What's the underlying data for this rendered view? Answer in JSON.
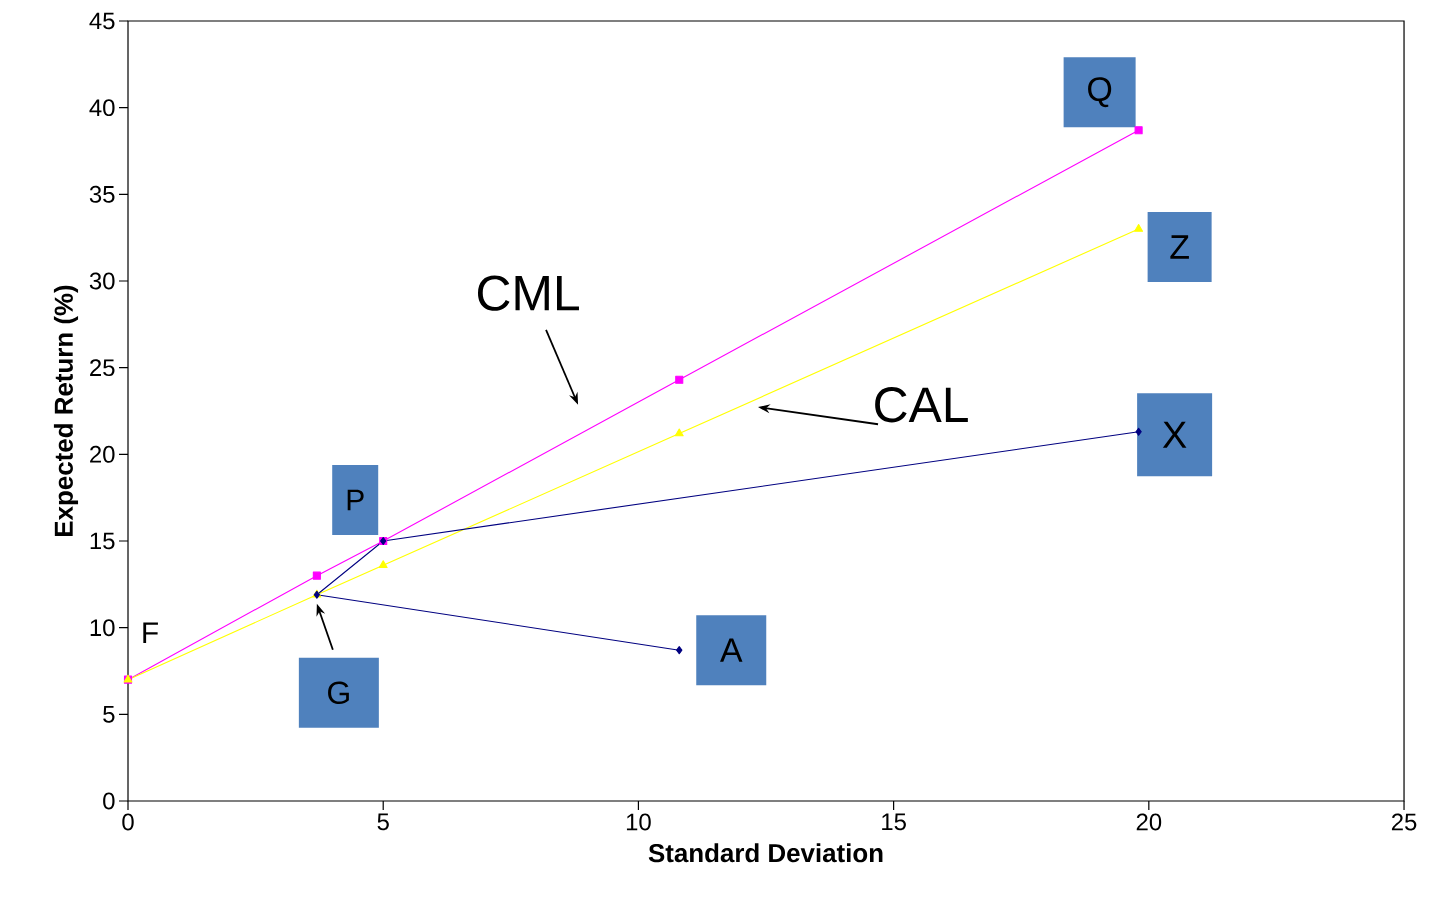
{
  "chart_data": {
    "type": "line",
    "xlabel": "Standard Deviation",
    "ylabel": "Expected Return (%)",
    "xlim": [
      0,
      25
    ],
    "ylim": [
      0,
      45
    ],
    "xticks": [
      0,
      5,
      10,
      15,
      20,
      25
    ],
    "yticks": [
      0,
      5,
      10,
      15,
      20,
      25,
      30,
      35,
      40,
      45
    ],
    "grid": false,
    "series": [
      {
        "color": "#ff00ff",
        "marker": "square",
        "x": [
          0,
          3.7,
          5,
          10.8,
          19.8
        ],
        "values": [
          7,
          13,
          15,
          24.3,
          38.7
        ]
      },
      {
        "color": "#ffff00",
        "marker": "triangle",
        "x": [
          0,
          3.7,
          5,
          10.8,
          19.8
        ],
        "values": [
          7,
          11.9,
          13.6,
          21.2,
          33
        ]
      },
      {
        "color": "#000080",
        "marker": "diamond",
        "x": [
          10.8,
          3.7,
          5,
          19.8
        ],
        "values": [
          8.7,
          11.9,
          15,
          21.3
        ]
      }
    ],
    "annotations": [
      {
        "text": "Q",
        "x": 19.8,
        "y": 38.7
      },
      {
        "text": "Z",
        "x": 19.8,
        "y": 33
      },
      {
        "text": "X",
        "x": 19.8,
        "y": 21.3
      },
      {
        "text": "P",
        "x": 5,
        "y": 15
      },
      {
        "text": "G",
        "x": 3.7,
        "y": 11.9
      },
      {
        "text": "A",
        "x": 10.8,
        "y": 8.7
      },
      {
        "text": "F",
        "x": 0,
        "y": 7
      },
      "CML",
      "CAL"
    ]
  }
}
